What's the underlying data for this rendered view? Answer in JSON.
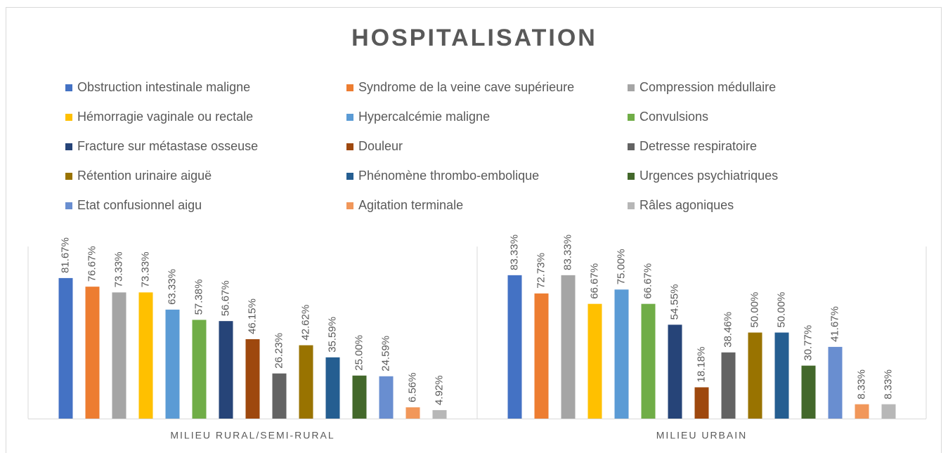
{
  "chart_data": {
    "type": "bar",
    "title": "HOSPITALISATION",
    "categories": [
      "MILIEU RURAL/SEMI-RURAL",
      "MILIEU URBAIN"
    ],
    "ylim": [
      0,
      100
    ],
    "series": [
      {
        "name": "Obstruction intestinale maligne",
        "color": "#4472c4",
        "values": [
          81.67,
          83.33
        ],
        "value_labels": [
          "81.67%",
          "83.33%"
        ]
      },
      {
        "name": "Syndrome de la veine cave supérieure",
        "color": "#ed7d31",
        "values": [
          76.67,
          72.73
        ],
        "value_labels": [
          "76.67%",
          "72.73%"
        ]
      },
      {
        "name": "Compression médullaire",
        "color": "#a5a5a5",
        "values": [
          73.33,
          83.33
        ],
        "value_labels": [
          "73.33%",
          "83.33%"
        ]
      },
      {
        "name": "Hémorragie vaginale ou rectale",
        "color": "#ffc000",
        "values": [
          73.33,
          66.67
        ],
        "value_labels": [
          "73.33%",
          "66.67%"
        ]
      },
      {
        "name": "Hypercalcémie maligne",
        "color": "#5b9bd5",
        "values": [
          63.33,
          75.0
        ],
        "value_labels": [
          "63.33%",
          "75.00%"
        ]
      },
      {
        "name": "Convulsions",
        "color": "#70ad47",
        "values": [
          57.38,
          66.67
        ],
        "value_labels": [
          "57.38%",
          "66.67%"
        ]
      },
      {
        "name": "Fracture sur métastase osseuse",
        "color": "#264478",
        "values": [
          56.67,
          54.55
        ],
        "value_labels": [
          "56.67%",
          "54.55%"
        ]
      },
      {
        "name": "Douleur",
        "color": "#9e480e",
        "values": [
          46.15,
          18.18
        ],
        "value_labels": [
          "46.15%",
          "18.18%"
        ]
      },
      {
        "name": "Detresse respiratoire",
        "color": "#636363",
        "values": [
          26.23,
          38.46
        ],
        "value_labels": [
          "26.23%",
          "38.46%"
        ]
      },
      {
        "name": "Rétention urinaire aiguë",
        "color": "#997300",
        "values": [
          42.62,
          50.0
        ],
        "value_labels": [
          "42.62%",
          "50.00%"
        ]
      },
      {
        "name": "Phénomène thrombo-embolique",
        "color": "#255e91",
        "values": [
          35.59,
          50.0
        ],
        "value_labels": [
          "35.59%",
          "50.00%"
        ]
      },
      {
        "name": "Urgences psychiatriques",
        "color": "#43682b",
        "values": [
          25.0,
          30.77
        ],
        "value_labels": [
          "25.00%",
          "30.77%"
        ]
      },
      {
        "name": "Etat confusionnel aigu",
        "color": "#698ed0",
        "values": [
          24.59,
          41.67
        ],
        "value_labels": [
          "24.59%",
          "41.67%"
        ]
      },
      {
        "name": "Agitation terminale",
        "color": "#f1975a",
        "values": [
          6.56,
          8.33
        ],
        "value_labels": [
          "6.56%",
          "8.33%"
        ]
      },
      {
        "name": "Râles agoniques",
        "color": "#b7b7b7",
        "values": [
          4.92,
          8.33
        ],
        "value_labels": [
          "4.92%",
          "8.33%"
        ]
      }
    ]
  }
}
